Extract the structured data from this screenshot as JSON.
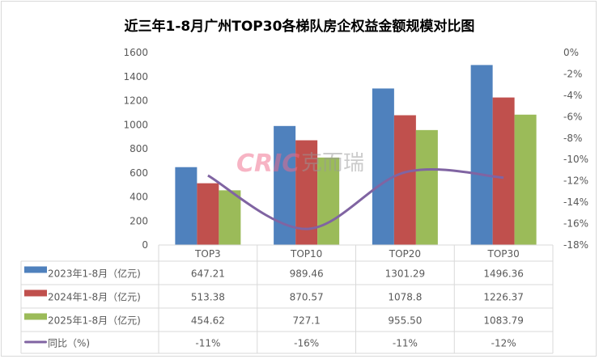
{
  "chart_data": {
    "type": "bar",
    "title": "近三年1-8月广州TOP30各梯队房企权益金额规模对比图",
    "categories": [
      "TOP3",
      "TOP10",
      "TOP20",
      "TOP30"
    ],
    "series": [
      {
        "name": "2023年1-8月（亿元)",
        "color": "#4f81bd",
        "values": [
          647.21,
          989.46,
          1301.29,
          1496.36
        ],
        "labels": [
          "647.21",
          "989.46",
          "1301.29",
          "1496.36"
        ]
      },
      {
        "name": "2024年1-8月（亿元)",
        "color": "#c0504d",
        "values": [
          513.38,
          870.57,
          1078.8,
          1226.37
        ],
        "labels": [
          "513.38",
          "870.57",
          "1078.8",
          "1226.37"
        ]
      },
      {
        "name": "2025年1-8月（亿元)",
        "color": "#9bbb59",
        "values": [
          454.62,
          727.1,
          955.5,
          1083.79
        ],
        "labels": [
          "454.62",
          "727.1",
          "955.50",
          "1083.79"
        ]
      }
    ],
    "line": {
      "name": "同比（%)",
      "color": "#8064a2",
      "values": [
        -11.5,
        -16.5,
        -11.2,
        -11.7
      ],
      "labels": [
        "-11%",
        "-16%",
        "-11%",
        "-12%"
      ]
    },
    "y_left": {
      "range": [
        0,
        1600
      ],
      "ticks": [
        "0",
        "200",
        "400",
        "600",
        "800",
        "1000",
        "1200",
        "1400",
        "1600"
      ]
    },
    "y_right": {
      "range": [
        -18,
        0
      ],
      "ticks": [
        "0%",
        "-2%",
        "-4%",
        "-6%",
        "-8%",
        "-10%",
        "-12%",
        "-14%",
        "-16%",
        "-18%"
      ]
    },
    "legend": "data-table",
    "watermark": "CRIC 克而瑞"
  }
}
